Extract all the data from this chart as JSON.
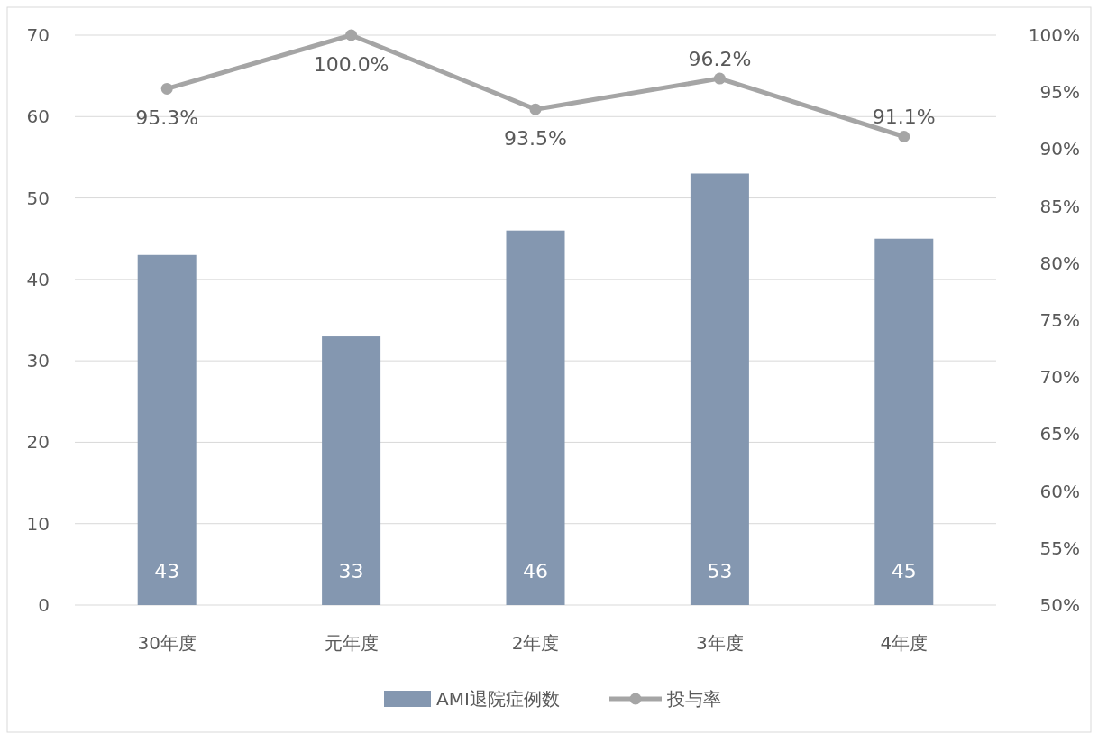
{
  "chart_data": {
    "type": "bar",
    "categories": [
      "30年度",
      "元年度",
      "2年度",
      "3年度",
      "4年度"
    ],
    "series": [
      {
        "name": "AMI退院症例数",
        "color": "#8497b0",
        "values": [
          43,
          33,
          46,
          53,
          45
        ],
        "value_labels": [
          "43",
          "33",
          "46",
          "53",
          "45"
        ]
      },
      {
        "name": "投与率",
        "type": "line",
        "axis": "y2",
        "color": "#a5a5a5",
        "marker": "circle",
        "values": [
          95.3,
          100.0,
          93.5,
          96.2,
          91.1
        ],
        "value_labels": [
          "95.3%",
          "100.0%",
          "93.5%",
          "96.2%",
          "91.1%"
        ]
      }
    ],
    "ylim": [
      0,
      70
    ],
    "yticks": [
      0,
      10,
      20,
      30,
      40,
      50,
      60,
      70
    ],
    "y2lim": [
      50,
      100
    ],
    "y2ticks": [
      {
        "value": 50,
        "label": "50%"
      },
      {
        "value": 55,
        "label": "55%"
      },
      {
        "value": 60,
        "label": "60%"
      },
      {
        "value": 65,
        "label": "65%"
      },
      {
        "value": 70,
        "label": "70%"
      },
      {
        "value": 75,
        "label": "75%"
      },
      {
        "value": 80,
        "label": "80%"
      },
      {
        "value": 85,
        "label": "85%"
      },
      {
        "value": 90,
        "label": "90%"
      },
      {
        "value": 95,
        "label": "95%"
      },
      {
        "value": 100,
        "label": "100%"
      }
    ],
    "grid": "y",
    "legend": "bottom"
  }
}
